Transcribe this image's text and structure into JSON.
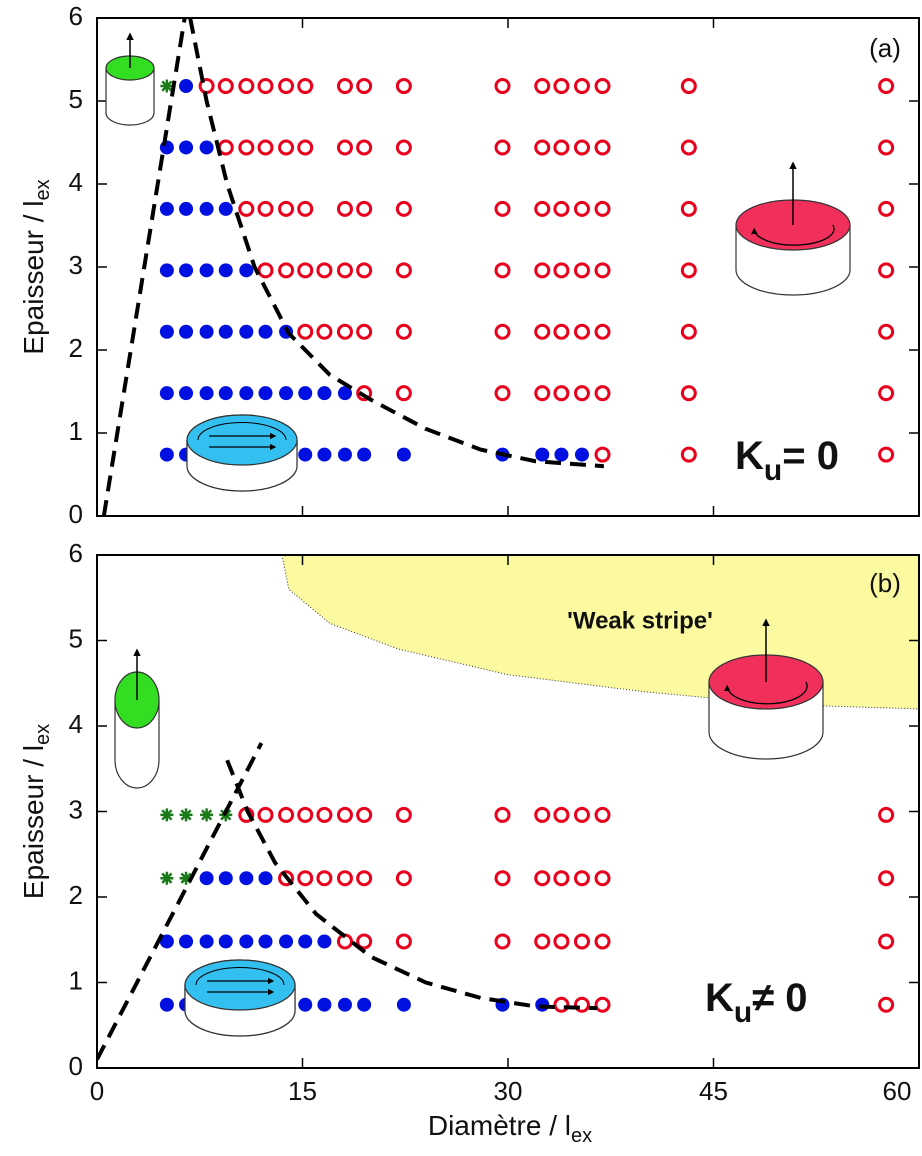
{
  "chart_data": [
    {
      "type": "scatter",
      "panel_label": "(a)",
      "ylabel": {
        "text": "Epaisseur / l",
        "sub": "ex"
      },
      "xlim": [
        0,
        60
      ],
      "ylim": [
        0,
        6
      ],
      "xticks": [
        0,
        15,
        30,
        45,
        60
      ],
      "yticks": [
        0,
        1,
        2,
        3,
        4,
        5,
        6
      ],
      "series": [
        {
          "color": "#e8001c",
          "marker": "open-circle",
          "rows": [
            {
              "y": 5.18,
              "x": [
                8.0,
                9.4,
                10.9,
                12.3,
                13.8,
                15.2,
                18.1,
                19.5,
                22.4,
                29.6,
                32.5,
                33.9,
                35.4,
                36.9,
                43.2,
                57.6
              ]
            },
            {
              "y": 4.44,
              "x": [
                9.4,
                10.9,
                12.3,
                13.8,
                15.2,
                18.1,
                19.5,
                22.4,
                29.6,
                32.5,
                33.9,
                35.4,
                36.9,
                43.2,
                57.6
              ]
            },
            {
              "y": 3.7,
              "x": [
                10.9,
                12.3,
                13.8,
                15.2,
                18.1,
                19.5,
                22.4,
                29.6,
                32.5,
                33.9,
                35.4,
                36.9,
                43.2,
                57.6
              ]
            },
            {
              "y": 2.96,
              "x": [
                12.3,
                13.8,
                15.2,
                16.6,
                18.1,
                19.5,
                22.4,
                29.6,
                32.5,
                33.9,
                35.4,
                36.9,
                43.2,
                57.6
              ]
            },
            {
              "y": 2.22,
              "x": [
                15.2,
                16.6,
                18.1,
                19.5,
                22.4,
                29.6,
                32.5,
                33.9,
                35.4,
                36.9,
                43.2,
                57.6
              ]
            },
            {
              "y": 1.48,
              "x": [
                19.5,
                22.4,
                29.6,
                32.5,
                33.9,
                35.4,
                36.9,
                43.2,
                57.6
              ]
            },
            {
              "y": 0.74,
              "x": [
                36.9,
                43.2,
                57.6
              ]
            }
          ]
        },
        {
          "color": "#0010e0",
          "marker": "filled-circle",
          "rows": [
            {
              "y": 5.18,
              "x": [
                6.5
              ]
            },
            {
              "y": 4.44,
              "x": [
                5.1,
                6.5,
                8.0
              ]
            },
            {
              "y": 3.7,
              "x": [
                5.1,
                6.5,
                8.0,
                9.4
              ]
            },
            {
              "y": 2.96,
              "x": [
                5.1,
                6.5,
                8.0,
                9.4,
                10.9
              ]
            },
            {
              "y": 2.22,
              "x": [
                5.1,
                6.5,
                8.0,
                9.4,
                10.9,
                12.3,
                13.8
              ]
            },
            {
              "y": 1.48,
              "x": [
                5.1,
                6.5,
                8.0,
                9.4,
                10.9,
                12.3,
                13.8,
                15.2,
                16.6,
                18.1
              ]
            },
            {
              "y": 0.74,
              "x": [
                5.1,
                6.5,
                8.0,
                9.4,
                10.9,
                12.3,
                13.8,
                15.2,
                16.6,
                18.1,
                19.5,
                22.4,
                29.6,
                32.5,
                33.9,
                35.4
              ]
            }
          ]
        },
        {
          "color": "#1a7a1a",
          "marker": "star",
          "rows": [
            {
              "y": 5.18,
              "x": [
                5.1
              ]
            }
          ]
        }
      ],
      "boundaries": [
        {
          "x": [
            0.5,
            6.4
          ],
          "y": [
            0,
            6
          ]
        },
        {
          "x": [
            6.8,
            8,
            9.5,
            11.5,
            14,
            17,
            20,
            24,
            28,
            32,
            37
          ],
          "y": [
            6,
            5,
            4,
            3,
            2.2,
            1.7,
            1.4,
            1.05,
            0.8,
            0.66,
            0.6
          ]
        }
      ],
      "annotation": {
        "main": "K",
        "sub": "u",
        "rest": "= 0"
      }
    },
    {
      "type": "scatter",
      "panel_label": "(b)",
      "ylabel": {
        "text": "Epaisseur / l",
        "sub": "ex"
      },
      "xlabel": {
        "text": "Diamètre / l",
        "sub": "ex"
      },
      "xlim": [
        0,
        60
      ],
      "ylim": [
        0,
        6
      ],
      "xticks": [
        0,
        15,
        30,
        45,
        60
      ],
      "yticks": [
        0,
        1,
        2,
        3,
        4,
        5,
        6
      ],
      "series": [
        {
          "color": "#e8001c",
          "marker": "open-circle",
          "rows": [
            {
              "y": 2.96,
              "x": [
                10.9,
                12.3,
                13.8,
                15.2,
                16.6,
                18.1,
                19.5,
                22.4,
                29.6,
                32.5,
                33.9,
                35.4,
                36.9,
                57.6
              ]
            },
            {
              "y": 2.22,
              "x": [
                13.8,
                15.2,
                16.6,
                18.1,
                19.5,
                22.4,
                29.6,
                32.5,
                33.9,
                35.4,
                36.9,
                57.6
              ]
            },
            {
              "y": 1.48,
              "x": [
                18.1,
                19.5,
                22.4,
                29.6,
                32.5,
                33.9,
                35.4,
                36.9,
                57.6
              ]
            },
            {
              "y": 0.74,
              "x": [
                33.9,
                35.4,
                36.9,
                57.6
              ]
            }
          ]
        },
        {
          "color": "#0010e0",
          "marker": "filled-circle",
          "rows": [
            {
              "y": 2.22,
              "x": [
                8.0,
                9.4,
                10.9,
                12.3
              ]
            },
            {
              "y": 1.48,
              "x": [
                5.1,
                6.5,
                8.0,
                9.4,
                10.9,
                12.3,
                13.8,
                15.2,
                16.6
              ]
            },
            {
              "y": 0.74,
              "x": [
                5.1,
                6.5,
                8.0,
                9.4,
                10.9,
                12.3,
                13.8,
                15.2,
                16.6,
                18.1,
                19.5,
                22.4,
                29.6,
                32.5
              ]
            }
          ]
        },
        {
          "color": "#1a7a1a",
          "marker": "star",
          "rows": [
            {
              "y": 2.96,
              "x": [
                5.1,
                6.5,
                8.0,
                9.4
              ]
            },
            {
              "y": 2.22,
              "x": [
                5.1,
                6.5
              ]
            }
          ]
        }
      ],
      "boundaries": [
        {
          "x": [
            0,
            12
          ],
          "y": [
            0.1,
            3.8
          ]
        },
        {
          "x": [
            9.5,
            11,
            13,
            16,
            20,
            24,
            28,
            32,
            36.5
          ],
          "y": [
            3.6,
            3.0,
            2.4,
            1.8,
            1.3,
            1.0,
            0.82,
            0.72,
            0.7
          ]
        }
      ],
      "region": {
        "color": "#fbfaa0",
        "label": "'Weak stripe'",
        "x": [
          13.5,
          14,
          17,
          22,
          30,
          40,
          50,
          60
        ],
        "y": [
          6,
          5.6,
          5.2,
          4.9,
          4.6,
          4.4,
          4.25,
          4.2
        ]
      },
      "annotation": {
        "main": "K",
        "sub": "u",
        "rest": "≠ 0"
      }
    }
  ]
}
